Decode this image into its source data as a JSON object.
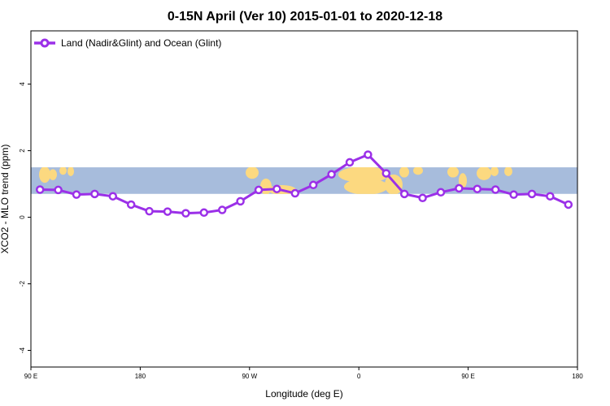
{
  "colors": {
    "series": "#9b30e8",
    "ocean": "#a7bcdc",
    "land": "#fcd980",
    "axis": "#000000",
    "background": "#ffffff"
  },
  "chart_data": {
    "type": "line",
    "title": "0-15N April (Ver 10)   2015-01-01 to 2020-12-18",
    "xlabel": "Longitude (deg E)",
    "ylabel": "XCO2 - MLO trend (ppm)",
    "xlim": [
      90,
      540
    ],
    "ylim": [
      -4.5,
      5.6
    ],
    "x_ticks": [
      90,
      180,
      270,
      360,
      450,
      540
    ],
    "x_tick_labels": [
      "90 E",
      "180",
      "90 W",
      "0",
      "90 E",
      "180"
    ],
    "y_ticks": [
      -4,
      -2,
      0,
      2,
      4
    ],
    "y_tick_labels": [
      "-4",
      "-2",
      "0",
      "2",
      "4"
    ],
    "legend_position": "top-left",
    "background_band": {
      "description": "map strip 0-15N",
      "ymin": 0.7,
      "ymax": 1.5
    },
    "series": [
      {
        "name": "Land (Nadir&Glint) and Ocean (Glint)",
        "x": [
          97.5,
          112.5,
          127.5,
          142.5,
          157.5,
          172.5,
          187.5,
          202.5,
          217.5,
          232.5,
          247.5,
          262.5,
          277.5,
          292.5,
          307.5,
          322.5,
          337.5,
          352.5,
          367.5,
          382.5,
          397.5,
          412.5,
          427.5,
          442.5,
          457.5,
          472.5,
          487.5,
          502.5,
          517.5,
          532.5
        ],
        "values": [
          0.83,
          0.82,
          0.68,
          0.7,
          0.63,
          0.38,
          0.18,
          0.17,
          0.12,
          0.14,
          0.22,
          0.48,
          0.82,
          0.85,
          0.72,
          0.97,
          1.29,
          1.65,
          1.88,
          1.32,
          0.7,
          0.58,
          0.75,
          0.87,
          0.85,
          0.83,
          0.68,
          0.7,
          0.63,
          0.38
        ]
      }
    ]
  }
}
